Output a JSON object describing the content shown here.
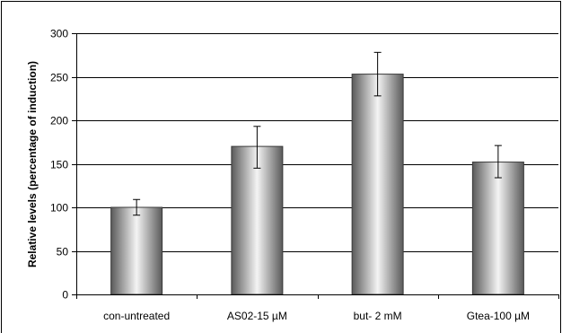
{
  "chart_data": {
    "type": "bar",
    "title": "",
    "xlabel": "",
    "ylabel": "Relative levels (percentage of induction)",
    "categories": [
      "con-untreated",
      "AS02-15 µM",
      "but- 2 mM",
      "Gtea-100 µM"
    ],
    "values": [
      100,
      170,
      253,
      152
    ],
    "error_low": [
      91,
      145,
      228,
      134
    ],
    "error_high": [
      109,
      193,
      278,
      171
    ],
    "ylim": [
      0,
      300
    ],
    "yticks": [
      0,
      50,
      100,
      150,
      200,
      250,
      300
    ],
    "grid": "horizontal",
    "legend": "none",
    "colors": {
      "bar_dark": "#5a5a5a",
      "bar_light": "#f4f4f4",
      "grid": "#000000",
      "error_bar": "#000000"
    }
  }
}
